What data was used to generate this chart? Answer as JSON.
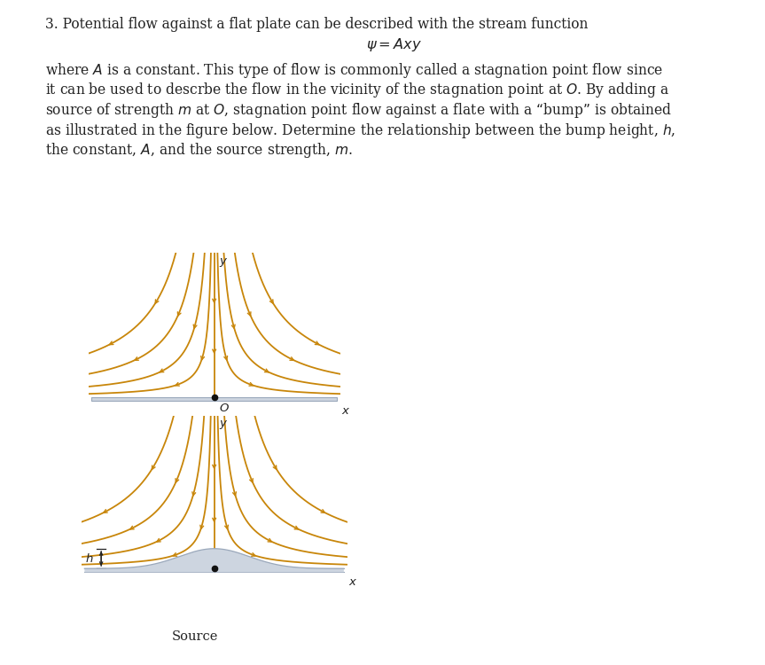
{
  "bg_color": "#ffffff",
  "streamline_color": "#c8860a",
  "plate_color": "#cdd5e0",
  "plate_edge_color": "#9aa8bb",
  "bump_color": "#cdd5e0",
  "bump_edge_color": "#9aa8bb",
  "axis_color": "#444444",
  "dot_color": "#111111",
  "text_color": "#222222",
  "title_text": "3. Potential flow against a flat plate can be described with the stream function",
  "eq_text": "$\\psi = Axy$",
  "body_line1": "where $A$ is a constant. This type of flow is commonly called a stagnation point flow since",
  "body_line2": "it can be used to descrbe the flow in the vicinity of the stagnation point at $O$. By adding a",
  "body_line3": "source of strength $m$ at $O$, stagnation point flow against a flate with a “bump” is obtained",
  "body_line4": "as illustrated in the figure below. Determine the relationship between the bump height, $h$,",
  "body_line5": "the constant, $A$, and the source strength, $m$.",
  "label_O": "$O$",
  "label_x": "$x$",
  "label_y": "$y$",
  "label_h": "$h$",
  "label_source": "Source",
  "psi_values": [
    0.12,
    0.35,
    0.75,
    1.4
  ],
  "lw_stream": 1.3,
  "fontsize_body": 11.2,
  "fontsize_label": 9.5
}
